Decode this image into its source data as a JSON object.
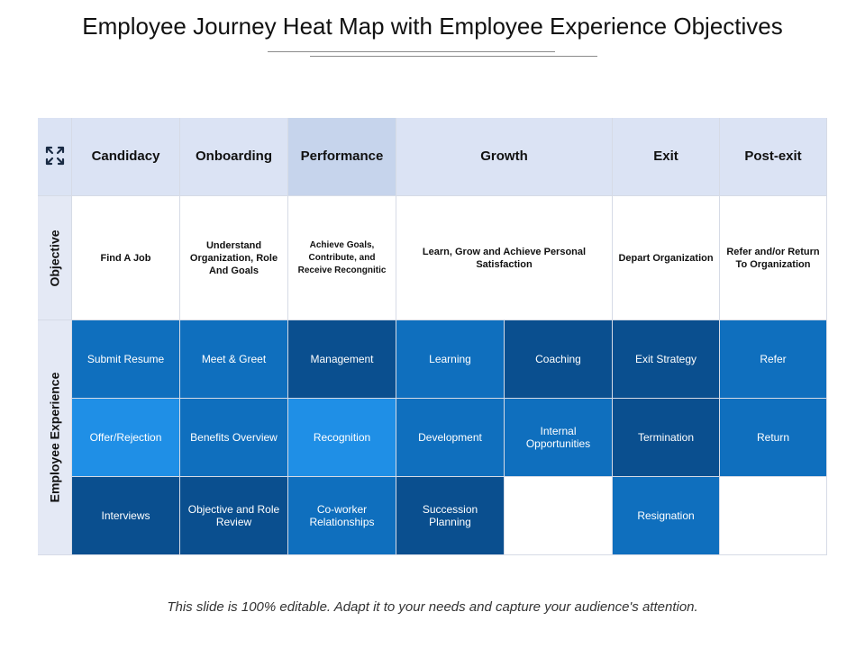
{
  "title": "Employee Journey Heat Map with Employee Experience Objectives",
  "footer": "This slide is 100% editable. Adapt it to your needs and capture your audience's attention.",
  "corner_icon": "expand-arrows-icon",
  "headers": [
    "Candidacy",
    "Onboarding",
    "Performance",
    "Growth",
    "Exit",
    "Post-exit"
  ],
  "row_labels": {
    "objective": "Objective",
    "experience": "Employee Experience"
  },
  "objectives": [
    "Find  A Job",
    "Understand Organization, Role And Goals",
    "Achieve Goals, Contribute, and Receive Recongnitic",
    "Learn, Grow and  Achieve Personal Satisfaction",
    "Depart Organization",
    "Refer and/or Return To Organization"
  ],
  "experience": [
    [
      "Submit Resume",
      "Meet & Greet",
      "Management",
      "Learning",
      "Coaching",
      "Exit Strategy",
      "Refer"
    ],
    [
      "Offer/Rejection",
      "Benefits Overview",
      "Recognition",
      "Development",
      "Internal Opportunities",
      "Termination",
      "Return"
    ],
    [
      "Interviews",
      "Objective and Role Review",
      "Co-worker Relationships",
      "Succession Planning",
      "",
      "Resignation",
      ""
    ]
  ],
  "heat_colors": [
    [
      "#0f6fbe",
      "#0f6fbe",
      "#0a4f8f",
      "#0f6fbe",
      "#0a4f8f",
      "#0a4f8f",
      "#0f6fbe"
    ],
    [
      "#1f8fe6",
      "#0f6fbe",
      "#1f8fe6",
      "#0f6fbe",
      "#0f6fbe",
      "#0a4f8f",
      "#0f6fbe"
    ],
    [
      "#0a4f8f",
      "#0a4f8f",
      "#0f6fbe",
      "#0a4f8f",
      "#ffffff",
      "#0f6fbe",
      "#ffffff"
    ]
  ]
}
